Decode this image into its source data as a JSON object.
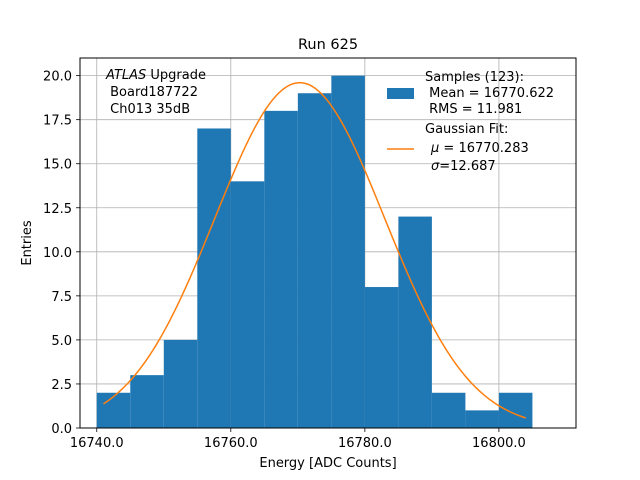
{
  "chart_data": {
    "type": "bar",
    "title": "Run 625",
    "xlabel": "Energy [ADC Counts]",
    "ylabel": "Entries",
    "xlim": [
      16737.5,
      16811.5
    ],
    "ylim": [
      0,
      21
    ],
    "grid": true,
    "x_ticks": [
      16740,
      16760,
      16780,
      16800
    ],
    "x_tick_labels": [
      "16740.0",
      "16760.0",
      "16780.0",
      "16800.0"
    ],
    "y_ticks": [
      0,
      2.5,
      5,
      7.5,
      10,
      12.5,
      15,
      17.5,
      20
    ],
    "y_tick_labels": [
      "0.0",
      "2.5",
      "5.0",
      "7.5",
      "10.0",
      "12.5",
      "15.0",
      "17.5",
      "20.0"
    ],
    "bin_width": 5,
    "bins": [
      16740,
      16745,
      16750,
      16755,
      16760,
      16765,
      16770,
      16775,
      16780,
      16785,
      16790,
      16795,
      16800
    ],
    "counts": [
      2,
      3,
      5,
      17,
      14,
      18,
      19,
      20,
      8,
      12,
      2,
      1,
      2
    ],
    "fit": {
      "type": "gaussian",
      "amplitude": 19.6,
      "mu": 16770.283,
      "sigma": 12.687,
      "x_range": [
        16741,
        16804
      ]
    },
    "histogram_color": "#1f77b4",
    "fit_color": "#ff7f0e",
    "legend_location": "upper right",
    "legend": {
      "hist_lines": [
        "Samples (123):",
        " Mean = 16770.622",
        " RMS = 11.981"
      ],
      "fit_lines": [
        "Gaussian Fit:",
        "μ = 16770.283",
        "σ=12.687"
      ]
    },
    "annotation": {
      "italic": "ATLAS",
      "rest": " Upgrade",
      "line2": " Board187722",
      "line3": " Ch013 35dB"
    }
  }
}
